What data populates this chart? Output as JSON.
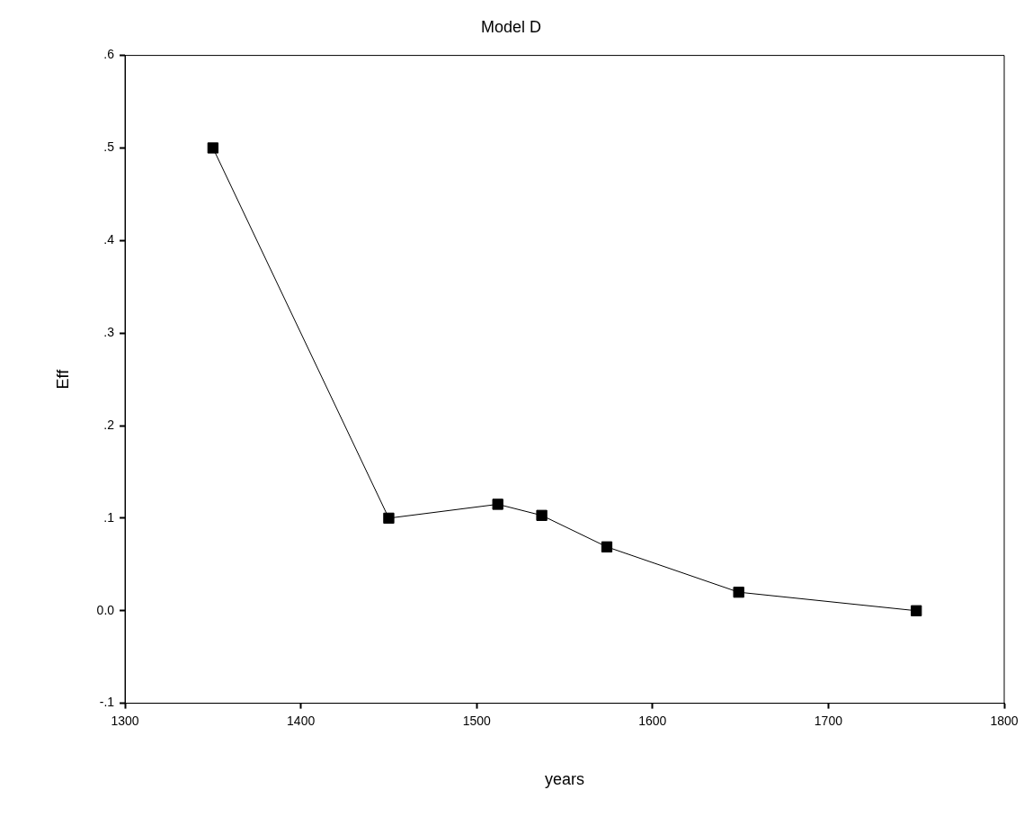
{
  "chart_data": {
    "type": "line",
    "title": "Model D",
    "xlabel": "years",
    "ylabel": "Eff",
    "x": [
      1350,
      1450,
      1512,
      1537,
      1574,
      1649,
      1750
    ],
    "series": [
      {
        "color": "#000000",
        "values": [
          0.5,
          0.1,
          0.115,
          0.103,
          0.069,
          0.02,
          0
        ]
      }
    ],
    "xlim": [
      1300,
      1800
    ],
    "xticks": [
      1300,
      1400,
      1500,
      1600,
      1700,
      1800
    ],
    "ylim": [
      -0.1,
      0.6
    ],
    "yticks": [
      {
        "value": -0.1,
        "label": "-.1"
      },
      {
        "value": 0,
        "label": "0.0"
      },
      {
        "value": 0.1,
        "label": ".1"
      },
      {
        "value": 0.2,
        "label": ".2"
      },
      {
        "value": 0.3,
        "label": ".3"
      },
      {
        "value": 0.4,
        "label": ".4"
      },
      {
        "value": 0.5,
        "label": ".5"
      },
      {
        "value": 0.6,
        "label": ".6"
      }
    ],
    "grid": false,
    "legend": false,
    "marker": "square",
    "line_style": "solid"
  }
}
